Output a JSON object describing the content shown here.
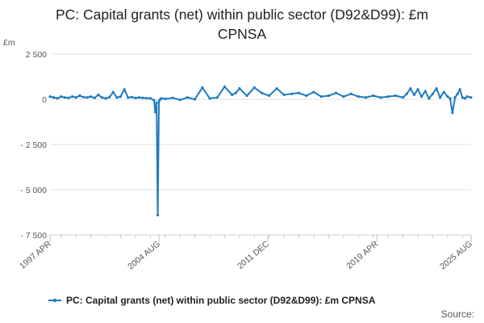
{
  "chart_data": {
    "type": "line",
    "title_lines": [
      "PC: Capital grants (net) within public sector (D92&D99): £m",
      "CPNSA"
    ],
    "ylabel": "£m",
    "ylim": [
      -7500,
      2500
    ],
    "yticks": [
      2500,
      0,
      -2500,
      -5000,
      -7500
    ],
    "ytick_labels": [
      "2 500",
      "0",
      "- 2 500",
      "- 5 000",
      "- 7 500"
    ],
    "xlim": [
      1997.25,
      2025.583
    ],
    "xticks": [
      1997.25,
      2004.583,
      2011.917,
      2019.25,
      2025.583
    ],
    "xtick_labels": [
      "1997 APR",
      "2004 AUG",
      "2011 DEC",
      "2019 APR",
      "2025 AUG"
    ],
    "grid": true,
    "legend_position": "bottom",
    "color": "#1f7bbf",
    "series": [
      {
        "name": "PC: Capital grants (net) within public sector (D92&D99): £m CPNSA",
        "x": [
          1997.25,
          1997.5,
          1997.75,
          1998.0,
          1998.25,
          1998.5,
          1998.75,
          1999.0,
          1999.25,
          1999.5,
          1999.75,
          2000.0,
          2000.25,
          2000.5,
          2000.75,
          2001.0,
          2001.25,
          2001.5,
          2001.75,
          2002.0,
          2002.25,
          2002.5,
          2002.75,
          2003.0,
          2003.25,
          2003.5,
          2003.75,
          2004.0,
          2004.25,
          2004.33,
          2004.42,
          2004.5,
          2004.58,
          2004.67,
          2004.75,
          2005.0,
          2005.5,
          2006.0,
          2006.5,
          2007.0,
          2007.5,
          2008.0,
          2008.5,
          2009.0,
          2009.5,
          2009.75,
          2010.0,
          2010.5,
          2011.0,
          2011.5,
          2012.0,
          2012.5,
          2013.0,
          2013.5,
          2014.0,
          2014.5,
          2015.0,
          2015.5,
          2016.0,
          2016.5,
          2017.0,
          2017.5,
          2018.0,
          2018.5,
          2019.0,
          2019.5,
          2020.0,
          2020.5,
          2021.0,
          2021.25,
          2021.5,
          2021.75,
          2022.0,
          2022.25,
          2022.5,
          2022.75,
          2023.0,
          2023.25,
          2023.5,
          2023.75,
          2024.0,
          2024.17,
          2024.33,
          2024.5,
          2024.67,
          2024.83,
          2025.0,
          2025.17,
          2025.33,
          2025.58
        ],
        "values": [
          150,
          100,
          50,
          150,
          100,
          80,
          150,
          100,
          200,
          120,
          100,
          150,
          80,
          250,
          100,
          50,
          120,
          400,
          100,
          150,
          550,
          100,
          120,
          80,
          100,
          80,
          60,
          50,
          -50,
          -700,
          -200,
          -6400,
          -100,
          0,
          50,
          20,
          80,
          -30,
          100,
          0,
          650,
          50,
          100,
          700,
          250,
          350,
          600,
          200,
          650,
          350,
          200,
          600,
          250,
          300,
          350,
          200,
          400,
          150,
          200,
          350,
          150,
          300,
          150,
          100,
          200,
          100,
          150,
          200,
          100,
          300,
          600,
          250,
          550,
          150,
          450,
          50,
          300,
          600,
          100,
          400,
          150,
          50,
          -750,
          100,
          300,
          550,
          100,
          50,
          150,
          100
        ]
      }
    ]
  },
  "source_label": "Source:"
}
